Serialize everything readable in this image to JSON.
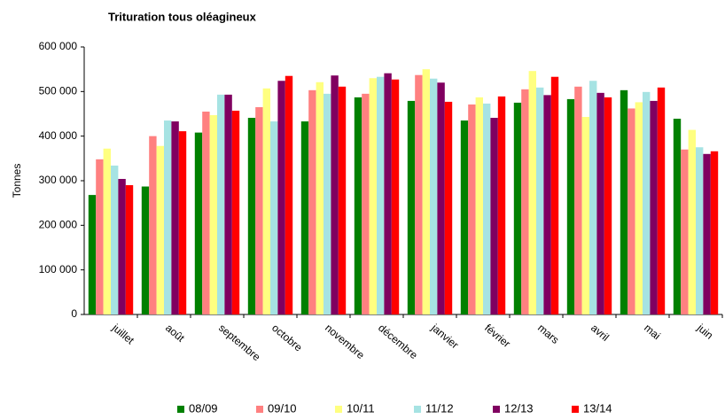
{
  "chart_data": {
    "type": "bar",
    "title": "Trituration tous oléagineux",
    "y_label": "Tonnes",
    "categories": [
      "juillet",
      "août",
      "septembre",
      "octobre",
      "novembre",
      "décembre",
      "janvier",
      "février",
      "mars",
      "avril",
      "mai",
      "juin"
    ],
    "series": [
      {
        "name": "08/09",
        "color": "#008000",
        "values": [
          268000,
          287000,
          408000,
          441000,
          433000,
          487000,
          479000,
          435000,
          475000,
          483000,
          503000,
          439000
        ]
      },
      {
        "name": "09/10",
        "color": "#ff8080",
        "values": [
          348000,
          400000,
          455000,
          465000,
          503000,
          495000,
          537000,
          471000,
          505000,
          511000,
          462000,
          370000
        ]
      },
      {
        "name": "10/11",
        "color": "#ffff80",
        "values": [
          372000,
          378000,
          447000,
          507000,
          521000,
          530000,
          550000,
          487000,
          546000,
          443000,
          476000,
          414000
        ]
      },
      {
        "name": "11/12",
        "color": "#a6e3e3",
        "values": [
          334000,
          435000,
          493000,
          433000,
          495000,
          533000,
          529000,
          473000,
          509000,
          524000,
          499000,
          375000
        ]
      },
      {
        "name": "12/13",
        "color": "#800060",
        "values": [
          304000,
          433000,
          493000,
          524000,
          536000,
          541000,
          520000,
          441000,
          492000,
          497000,
          479000,
          360000
        ]
      },
      {
        "name": "13/14",
        "color": "#ff0000",
        "values": [
          290000,
          411000,
          457000,
          535000,
          511000,
          527000,
          477000,
          489000,
          533000,
          487000,
          509000,
          366000
        ]
      }
    ],
    "ylim": [
      0,
      600000
    ],
    "yticks": [
      0,
      {
        "value": 100000,
        "label": "100 000"
      },
      {
        "value": 200000,
        "label": "200 000"
      },
      {
        "value": 300000,
        "label": "300 000"
      },
      {
        "value": 400000,
        "label": "400 000"
      },
      {
        "value": 500000,
        "label": "500 000"
      },
      {
        "value": 600000,
        "label": "600 000"
      }
    ],
    "grid": false,
    "legend": "bottom"
  }
}
